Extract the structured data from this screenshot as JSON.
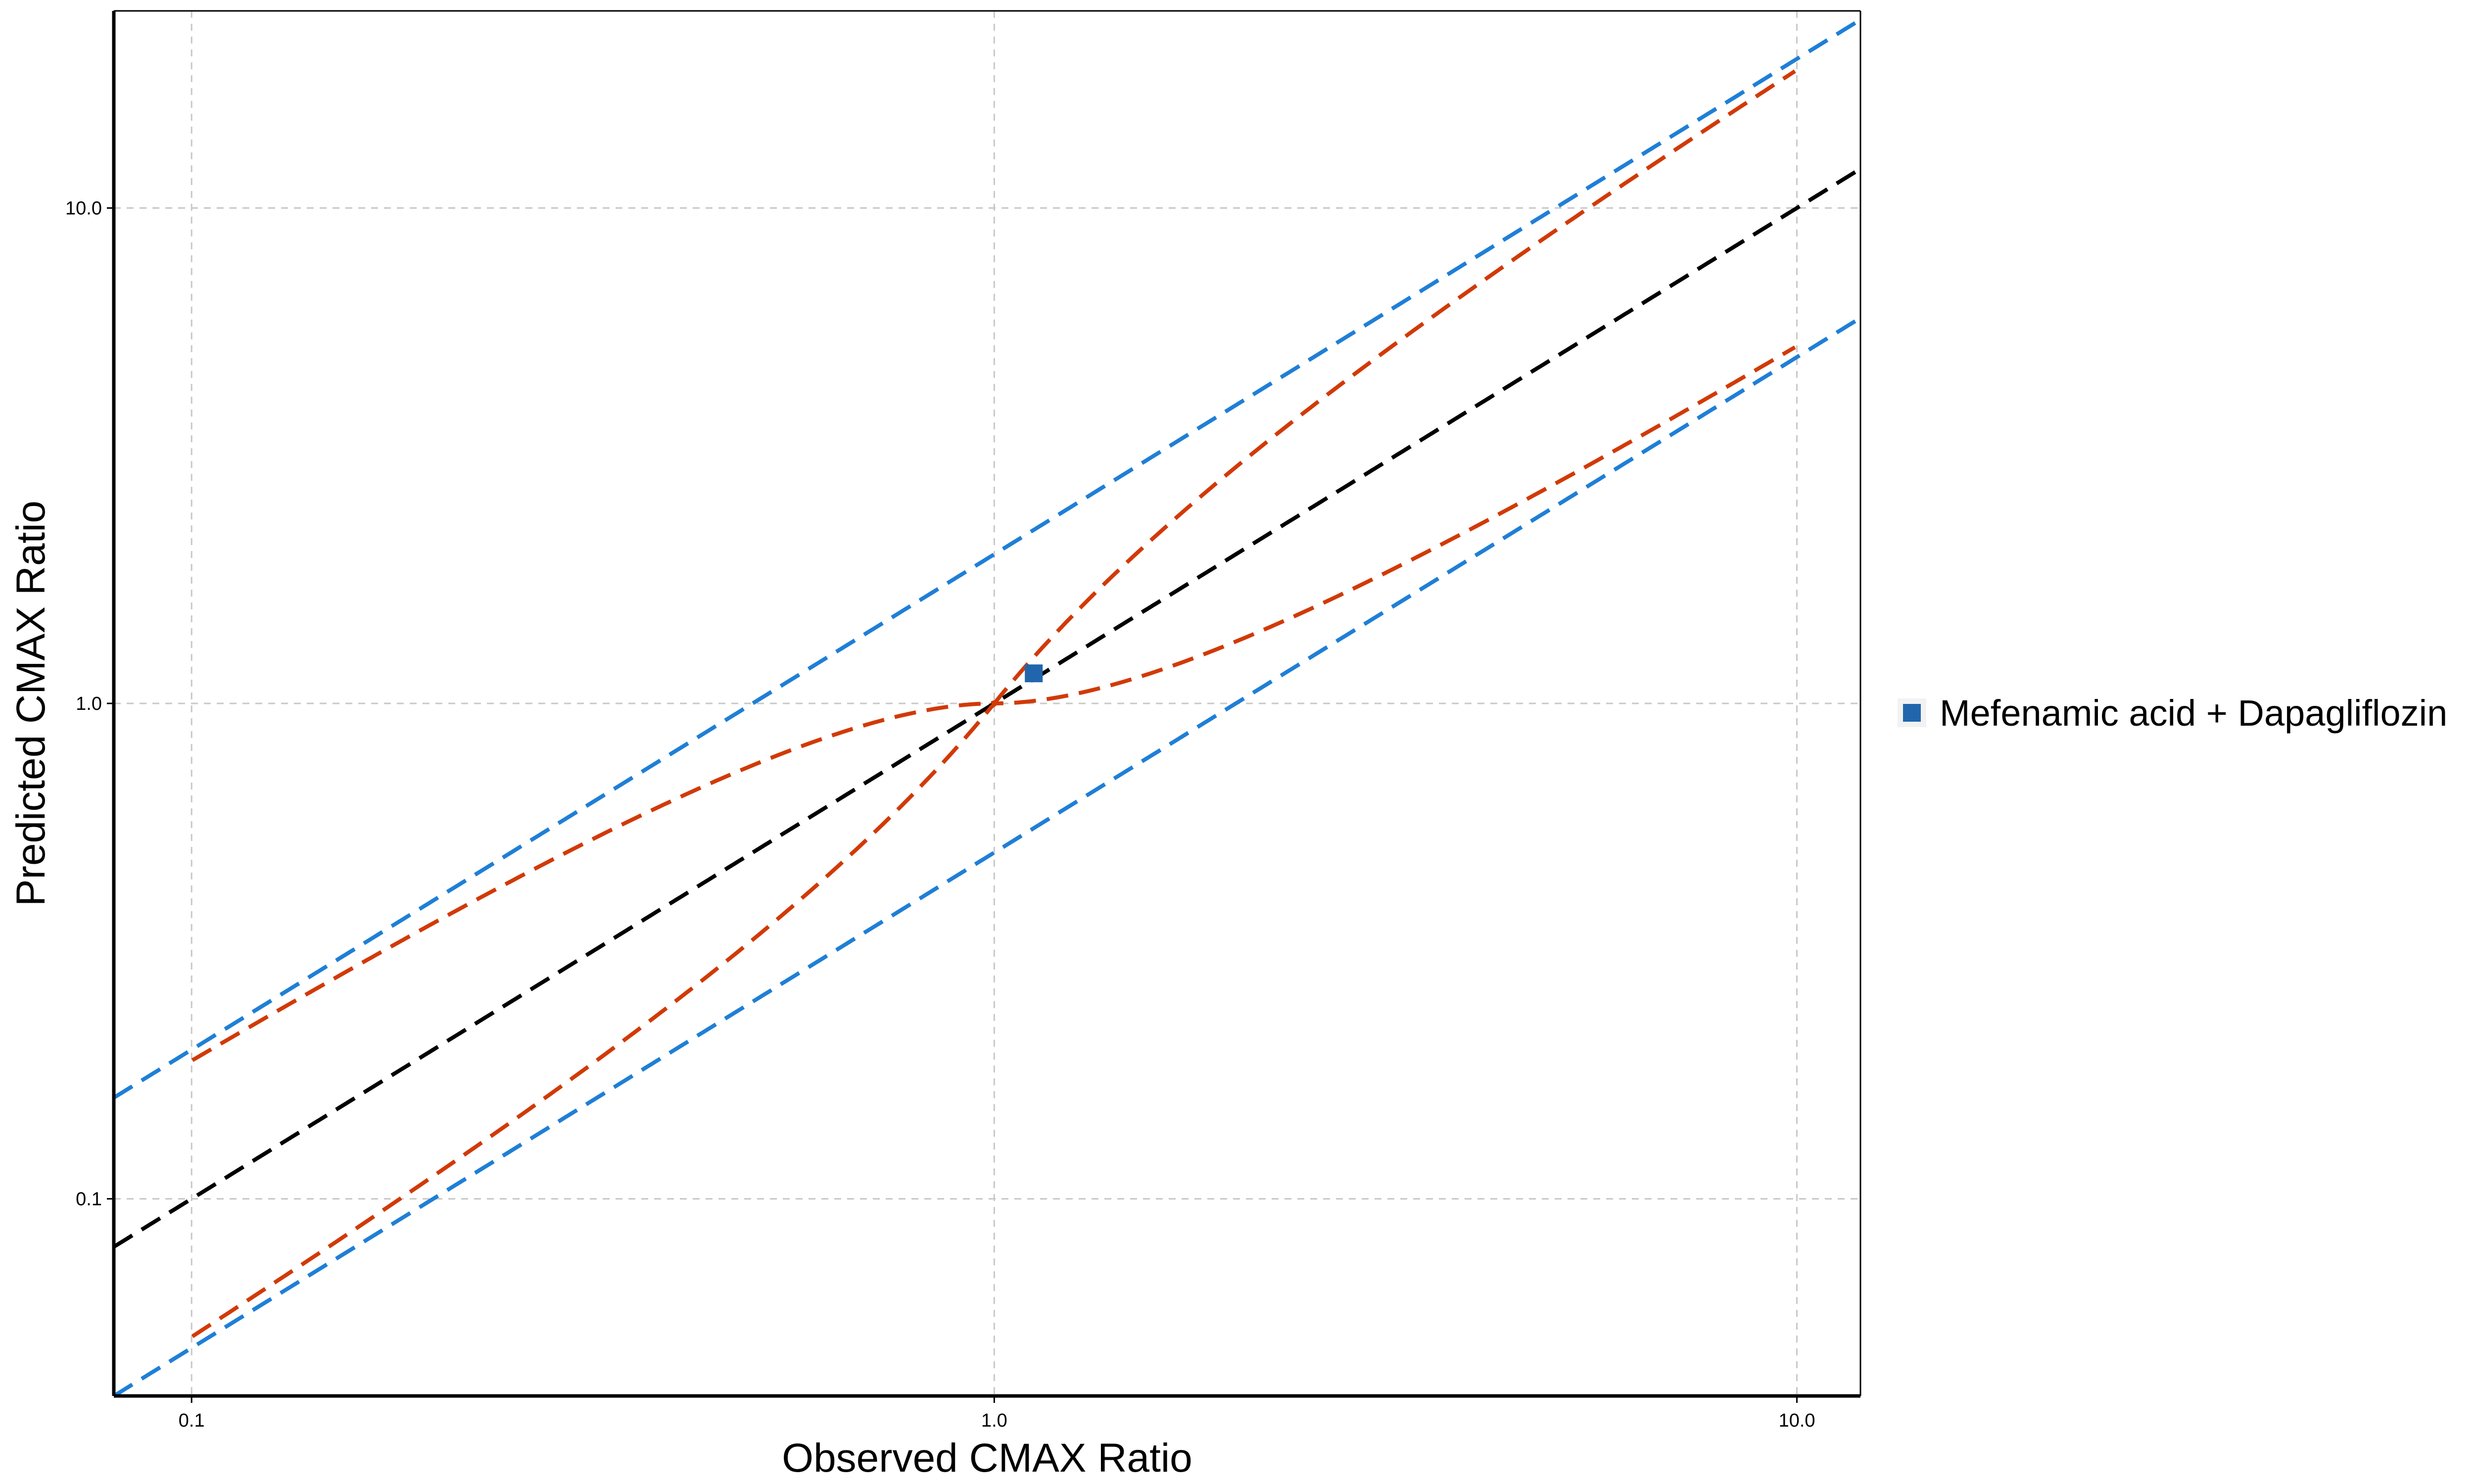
{
  "chart_data": {
    "type": "scatter",
    "title": "",
    "xlabel": "Observed CMAX Ratio",
    "ylabel": "Predicted CMAX Ratio",
    "x_scale": "log",
    "y_scale": "log",
    "xlim": [
      0.08,
      12.0
    ],
    "ylim": [
      0.04,
      25.0
    ],
    "x_ticks": [
      "0.1",
      "1.0",
      "10.0"
    ],
    "y_ticks": [
      "0.1",
      "1.0",
      "10.0"
    ],
    "x_tick_values": [
      0.1,
      1.0,
      10.0
    ],
    "y_tick_values": [
      0.1,
      1.0,
      10.0
    ],
    "grid": true,
    "legend_position": "right",
    "series": [
      {
        "name": "Mefenamic acid + Dapagliflozin",
        "marker": "square",
        "color": "#2166ac",
        "points": [
          {
            "x": 1.12,
            "y": 1.15
          }
        ]
      }
    ],
    "reference_lines": [
      {
        "kind": "identity",
        "factor": 1,
        "color": "#000000",
        "style": "dashed"
      },
      {
        "kind": "fold",
        "factor": 2,
        "color": "#1f7fd6",
        "style": "dashed"
      },
      {
        "kind": "fold",
        "factor": 0.5,
        "color": "#1f7fd6",
        "style": "dashed"
      },
      {
        "kind": "guest_limit_upper",
        "delta": 1,
        "color": "#d13a06",
        "style": "dashed"
      },
      {
        "kind": "guest_limit_lower",
        "delta": 1,
        "color": "#d13a06",
        "style": "dashed"
      }
    ],
    "colors": {
      "grid": "#c8c8c8",
      "axis": "#000000",
      "identity": "#000000",
      "two_fold": "#1f7fd6",
      "guest": "#d13a06",
      "marker": "#2166ac"
    }
  }
}
